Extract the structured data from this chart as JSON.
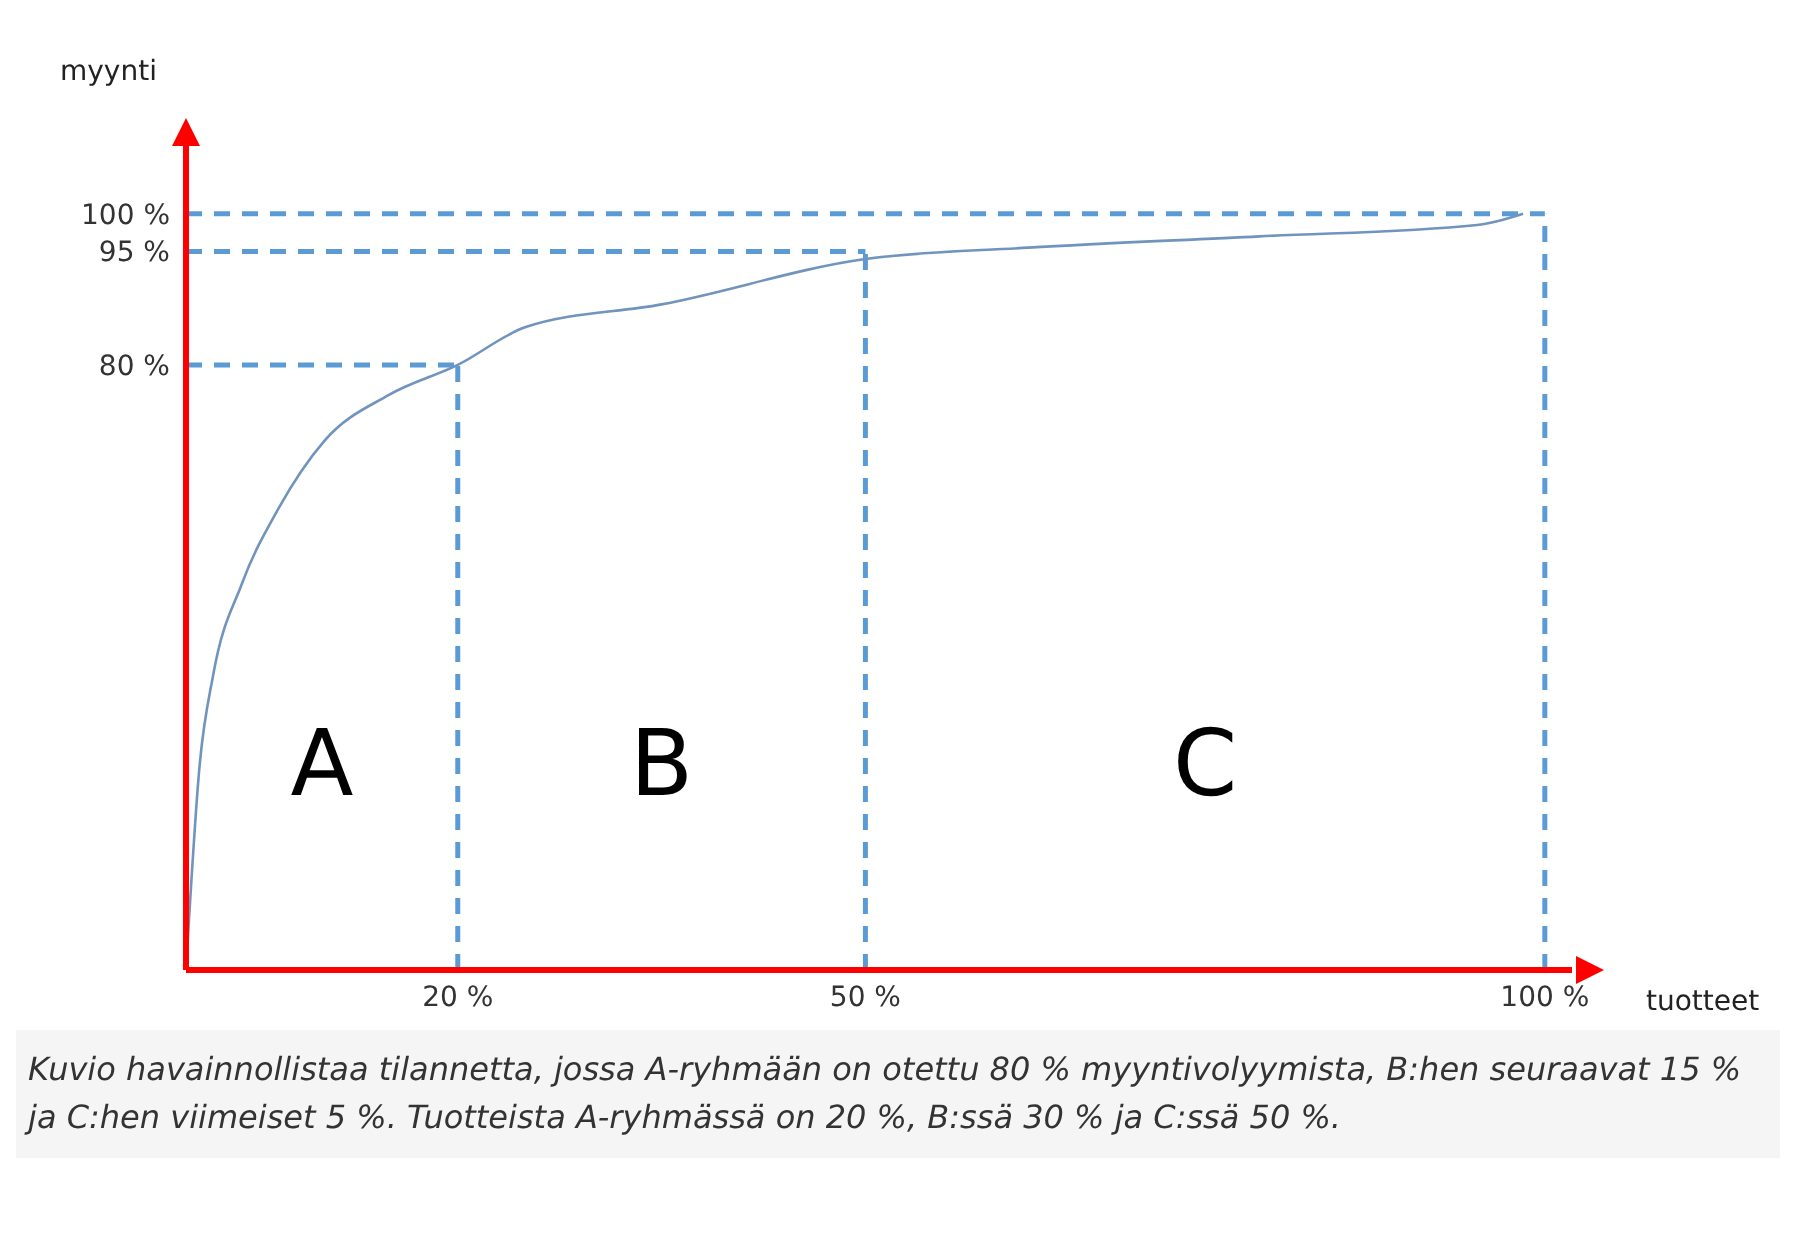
{
  "chart_data": {
    "type": "line",
    "ylabel": "myynti",
    "xlabel": "tuotteet",
    "x": [
      0,
      1,
      2,
      4.1,
      6.8,
      10.2,
      14.9,
      20,
      25,
      35,
      50,
      62,
      79,
      95,
      98.4
    ],
    "series": [
      {
        "color": "#7094bd",
        "values": [
          0,
          27,
          39,
          51,
          61,
          70,
          76,
          80,
          85,
          88,
          94,
          95.5,
          97,
          98.5,
          100
        ]
      }
    ],
    "xlim": [
      0,
      102
    ],
    "ylim": [
      0,
      110
    ],
    "xticks": [
      {
        "value": 20,
        "label": "20 %"
      },
      {
        "value": 50,
        "label": "50 %"
      },
      {
        "value": 100,
        "label": "100 %"
      }
    ],
    "yticks": [
      {
        "value": 80,
        "label": "80 %"
      },
      {
        "value": 95,
        "label": "95 %"
      },
      {
        "value": 100,
        "label": "100 %"
      }
    ],
    "ref_lines": [
      {
        "axis": "y",
        "value": 80,
        "color": "#5b9bd5",
        "line_style": "dashed"
      },
      {
        "axis": "y",
        "value": 95,
        "color": "#5b9bd5",
        "line_style": "dashed"
      },
      {
        "axis": "y",
        "value": 100,
        "color": "#5b9bd5",
        "line_style": "dashed"
      },
      {
        "axis": "x",
        "value": 20,
        "color": "#5b9bd5",
        "line_style": "dashed"
      },
      {
        "axis": "x",
        "value": 50,
        "color": "#5b9bd5",
        "line_style": "dashed"
      },
      {
        "axis": "x",
        "value": 100,
        "color": "#5b9bd5",
        "line_style": "dashed"
      }
    ],
    "annotations": [
      "A",
      "B",
      "C",
      "Kuvio havainnollistaa tilannetta, jossa A-ryhmään on otettu 80 % myyntivolyymista, B:hen seuraavat 15 % ja C:hen viimeiset 5 %. Tuotteista A-ryhmässä on 20 %, B:ssä 30 % ja C:ssä 50 %."
    ],
    "grid": false,
    "legend": false,
    "marker": "none",
    "line_style": "solid"
  }
}
